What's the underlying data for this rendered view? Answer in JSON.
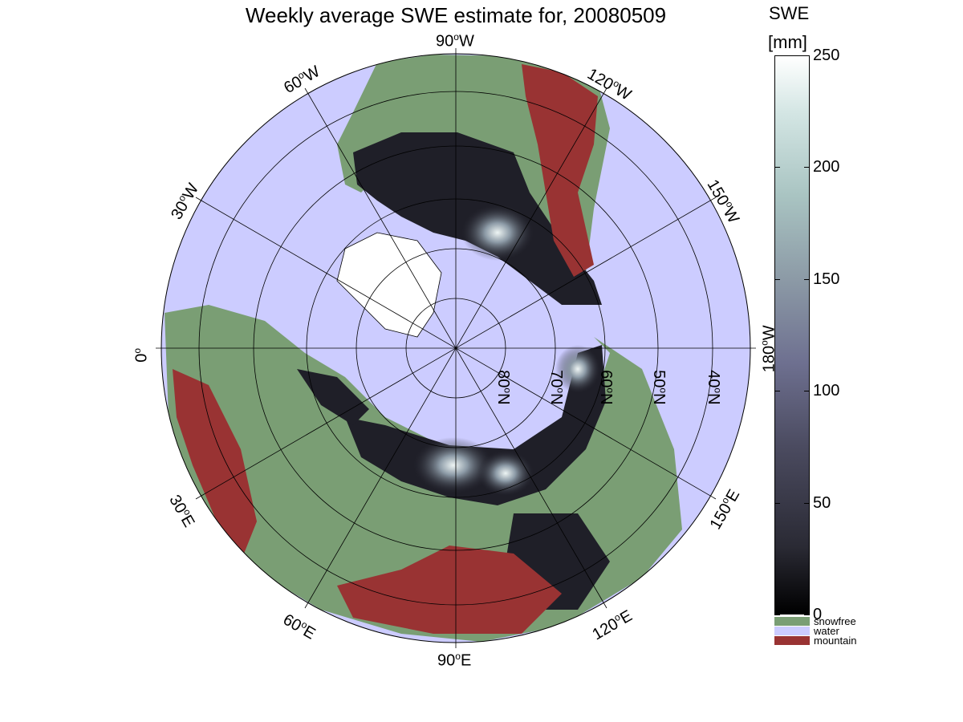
{
  "title": "Weekly average SWE estimate for, 20080509",
  "longitude_labels": {
    "lon_90w": {
      "deg": "90",
      "dir": "W"
    },
    "lon_60w": {
      "deg": "60",
      "dir": "W"
    },
    "lon_30w": {
      "deg": "30",
      "dir": "W"
    },
    "lon_0": {
      "deg": "0",
      "dir": ""
    },
    "lon_120w": {
      "deg": "120",
      "dir": "W"
    },
    "lon_150w": {
      "deg": "150",
      "dir": "W"
    },
    "lon_180w": {
      "deg": "180",
      "dir": "W"
    },
    "lon_30e": {
      "deg": "30",
      "dir": "E"
    },
    "lon_60e": {
      "deg": "60",
      "dir": "E"
    },
    "lon_90e": {
      "deg": "90",
      "dir": "E"
    },
    "lon_120e": {
      "deg": "120",
      "dir": "E"
    },
    "lon_150e": {
      "deg": "150",
      "dir": "E"
    }
  },
  "latitude_labels": {
    "lat_80n": {
      "deg": "80",
      "dir": "N"
    },
    "lat_70n": {
      "deg": "70",
      "dir": "N"
    },
    "lat_60n": {
      "deg": "60",
      "dir": "N"
    },
    "lat_50n": {
      "deg": "50",
      "dir": "N"
    },
    "lat_40n": {
      "deg": "40",
      "dir": "N"
    }
  },
  "colorbar": {
    "title_line1": "SWE",
    "title_line2": "[mm]",
    "range": [
      0,
      250
    ],
    "ticks": [
      "250",
      "200",
      "150",
      "100",
      "50",
      "0"
    ],
    "gradient_colors": [
      "#000000",
      "#4b4b60",
      "#8c9aa6",
      "#ffffff"
    ]
  },
  "legend": [
    {
      "label": "snowfree",
      "color": "#7a9e74"
    },
    {
      "label": "water",
      "color": "#ccccff"
    },
    {
      "label": "mountain",
      "color": "#993333"
    }
  ],
  "colors": {
    "water": "#ccccff",
    "snowfree": "#7a9e74",
    "mountain": "#993333",
    "snow_low": "#15151c",
    "snow_high": "#eef5f4"
  }
}
